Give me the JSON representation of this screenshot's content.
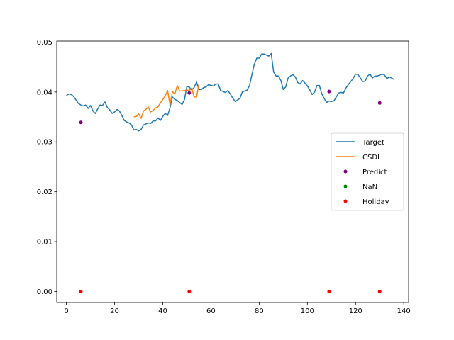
{
  "chart_data": {
    "type": "line",
    "xlim": [
      -4,
      142
    ],
    "ylim": [
      -0.0022,
      0.0502
    ],
    "xticks": [
      0,
      20,
      40,
      60,
      80,
      100,
      120,
      140
    ],
    "yticks": [
      0.0,
      0.01,
      0.02,
      0.03,
      0.04,
      0.05
    ],
    "ytick_labels": [
      "0.00",
      "0.01",
      "0.02",
      "0.03",
      "0.04",
      "0.05"
    ],
    "legend_position": "center-right",
    "series": [
      {
        "name": "Target",
        "kind": "line",
        "color": "#1f77b4",
        "x": [
          0,
          1,
          2,
          3,
          4,
          5,
          6,
          7,
          8,
          9,
          10,
          11,
          12,
          13,
          14,
          15,
          16,
          17,
          18,
          19,
          20,
          21,
          22,
          23,
          24,
          25,
          26,
          27,
          28,
          29,
          30,
          31,
          32,
          33,
          34,
          35,
          36,
          37,
          38,
          39,
          40,
          41,
          42,
          43,
          44,
          45,
          46,
          47,
          48,
          49,
          50,
          51,
          52,
          53,
          54,
          55,
          56,
          57,
          58,
          59,
          60,
          61,
          62,
          63,
          64,
          65,
          66,
          67,
          68,
          69,
          70,
          71,
          72,
          73,
          74,
          75,
          76,
          77,
          78,
          79,
          80,
          81,
          82,
          83,
          84,
          85,
          86,
          87,
          88,
          89,
          90,
          91,
          92,
          93,
          94,
          95,
          96,
          97,
          98,
          99,
          100,
          101,
          102,
          103,
          104,
          105,
          106,
          107,
          108,
          109,
          110,
          111,
          112,
          113,
          114,
          115,
          116,
          117,
          118,
          119,
          120,
          121,
          122,
          123,
          124,
          125,
          126,
          127,
          128,
          129,
          130,
          131,
          132,
          133,
          134,
          135,
          136
        ],
        "y": [
          0.0393,
          0.0396,
          0.0395,
          0.0391,
          0.0384,
          0.0377,
          0.0374,
          0.0372,
          0.0374,
          0.0367,
          0.0373,
          0.0362,
          0.0357,
          0.0366,
          0.0374,
          0.0373,
          0.038,
          0.0369,
          0.0364,
          0.0357,
          0.036,
          0.0365,
          0.0362,
          0.0353,
          0.0343,
          0.034,
          0.0338,
          0.0334,
          0.0324,
          0.0325,
          0.0322,
          0.0325,
          0.0334,
          0.0336,
          0.0338,
          0.0337,
          0.0342,
          0.0342,
          0.0348,
          0.0343,
          0.0351,
          0.0357,
          0.0353,
          0.0368,
          0.039,
          0.0385,
          0.0383,
          0.0379,
          0.0375,
          0.0385,
          0.0411,
          0.041,
          0.0404,
          0.0409,
          0.042,
          0.0405,
          0.0405,
          0.0409,
          0.041,
          0.0415,
          0.0413,
          0.0412,
          0.0416,
          0.0416,
          0.0403,
          0.0401,
          0.0399,
          0.0403,
          0.0396,
          0.0388,
          0.0381,
          0.0384,
          0.0387,
          0.04,
          0.0402,
          0.0404,
          0.0413,
          0.0435,
          0.0456,
          0.0468,
          0.0468,
          0.0476,
          0.0476,
          0.0474,
          0.0472,
          0.0477,
          0.044,
          0.0432,
          0.0432,
          0.0423,
          0.0405,
          0.041,
          0.0428,
          0.0432,
          0.0435,
          0.043,
          0.0419,
          0.0416,
          0.0423,
          0.0418,
          0.0412,
          0.0404,
          0.0395,
          0.04,
          0.0413,
          0.0413,
          0.0396,
          0.0387,
          0.0379,
          0.0382,
          0.0381,
          0.0382,
          0.039,
          0.0398,
          0.0399,
          0.0398,
          0.0408,
          0.0415,
          0.0421,
          0.0427,
          0.0436,
          0.0435,
          0.0428,
          0.0421,
          0.0422,
          0.0432,
          0.0436,
          0.0428,
          0.0432,
          0.0432,
          0.0434,
          0.0436,
          0.0434,
          0.0427,
          0.043,
          0.0428,
          0.0425
        ]
      },
      {
        "name": "CSDI",
        "kind": "line",
        "color": "#ff7f0e",
        "x": [
          28,
          29,
          30,
          31,
          32,
          33,
          34,
          35,
          36,
          37,
          38,
          39,
          40,
          41,
          42,
          43,
          44,
          45,
          46,
          47,
          48,
          49,
          50,
          51,
          52,
          53,
          54,
          55
        ],
        "y": [
          0.035,
          0.0351,
          0.0356,
          0.0347,
          0.0362,
          0.0365,
          0.037,
          0.036,
          0.0363,
          0.0368,
          0.037,
          0.0378,
          0.0385,
          0.0392,
          0.0403,
          0.0374,
          0.0401,
          0.0396,
          0.0413,
          0.0402,
          0.0402,
          0.0403,
          0.0404,
          0.0403,
          0.0408,
          0.039,
          0.039,
          0.0416
        ]
      },
      {
        "name": "Predict",
        "kind": "scatter",
        "color": "#800080",
        "x": [
          6,
          51,
          109,
          130
        ],
        "y": [
          0.0339,
          0.0398,
          0.0401,
          0.0378
        ]
      },
      {
        "name": "NaN",
        "kind": "scatter",
        "color": "#008000",
        "x": [],
        "y": []
      },
      {
        "name": "Holiday",
        "kind": "scatter",
        "color": "#ff0000",
        "x": [
          6,
          51,
          109,
          130
        ],
        "y": [
          0.0,
          0.0,
          0.0,
          0.0
        ]
      }
    ]
  }
}
